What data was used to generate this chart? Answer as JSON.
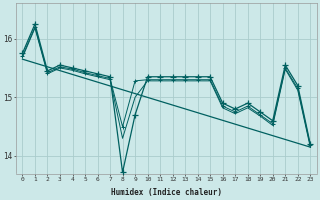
{
  "bg_color": "#cce8e8",
  "grid_color": "#aacccc",
  "line_color": "#006060",
  "xlabel": "Humidex (Indice chaleur)",
  "x_ticks": [
    0,
    1,
    2,
    3,
    4,
    5,
    6,
    7,
    8,
    9,
    10,
    11,
    12,
    13,
    14,
    15,
    16,
    17,
    18,
    19,
    20,
    21,
    22,
    23
  ],
  "ylim": [
    13.7,
    16.6
  ],
  "y_ticks": [
    14,
    15,
    16
  ],
  "s1_x": [
    0,
    1,
    2,
    3,
    4,
    5,
    6,
    7,
    8,
    9,
    10,
    11,
    12,
    13,
    14,
    15,
    16,
    17,
    18,
    19,
    20,
    21,
    22,
    23
  ],
  "s1_y": [
    15.75,
    16.25,
    15.45,
    15.55,
    15.5,
    15.45,
    15.4,
    15.35,
    13.72,
    14.7,
    15.35,
    15.35,
    15.35,
    15.35,
    15.35,
    15.35,
    14.9,
    14.8,
    14.9,
    14.75,
    14.6,
    15.55,
    15.2,
    14.2
  ],
  "s2_x": [
    0,
    1,
    2,
    3,
    4,
    5,
    6,
    7,
    8,
    9,
    10,
    11,
    12,
    13,
    14,
    15,
    16,
    17,
    18,
    19,
    20,
    21,
    22,
    23
  ],
  "s2_y": [
    15.7,
    16.2,
    15.42,
    15.52,
    15.48,
    15.42,
    15.37,
    15.32,
    14.5,
    15.28,
    15.3,
    15.3,
    15.3,
    15.3,
    15.3,
    15.3,
    14.85,
    14.75,
    14.85,
    14.7,
    14.55,
    15.5,
    15.15,
    14.18
  ],
  "s3_x": [
    0,
    1,
    2,
    3,
    4,
    5,
    6,
    7,
    8,
    9,
    10,
    11,
    12,
    13,
    14,
    15,
    16,
    17,
    18,
    19,
    20,
    21,
    22,
    23
  ],
  "s3_y": [
    15.68,
    16.18,
    15.4,
    15.5,
    15.46,
    15.4,
    15.35,
    15.3,
    14.3,
    15.0,
    15.28,
    15.28,
    15.28,
    15.28,
    15.28,
    15.28,
    14.82,
    14.72,
    14.82,
    14.68,
    14.52,
    15.48,
    15.12,
    14.15
  ],
  "trend_x": [
    0,
    23
  ],
  "trend_y": [
    15.65,
    14.15
  ],
  "figsize": [
    3.2,
    2.0
  ],
  "dpi": 100
}
